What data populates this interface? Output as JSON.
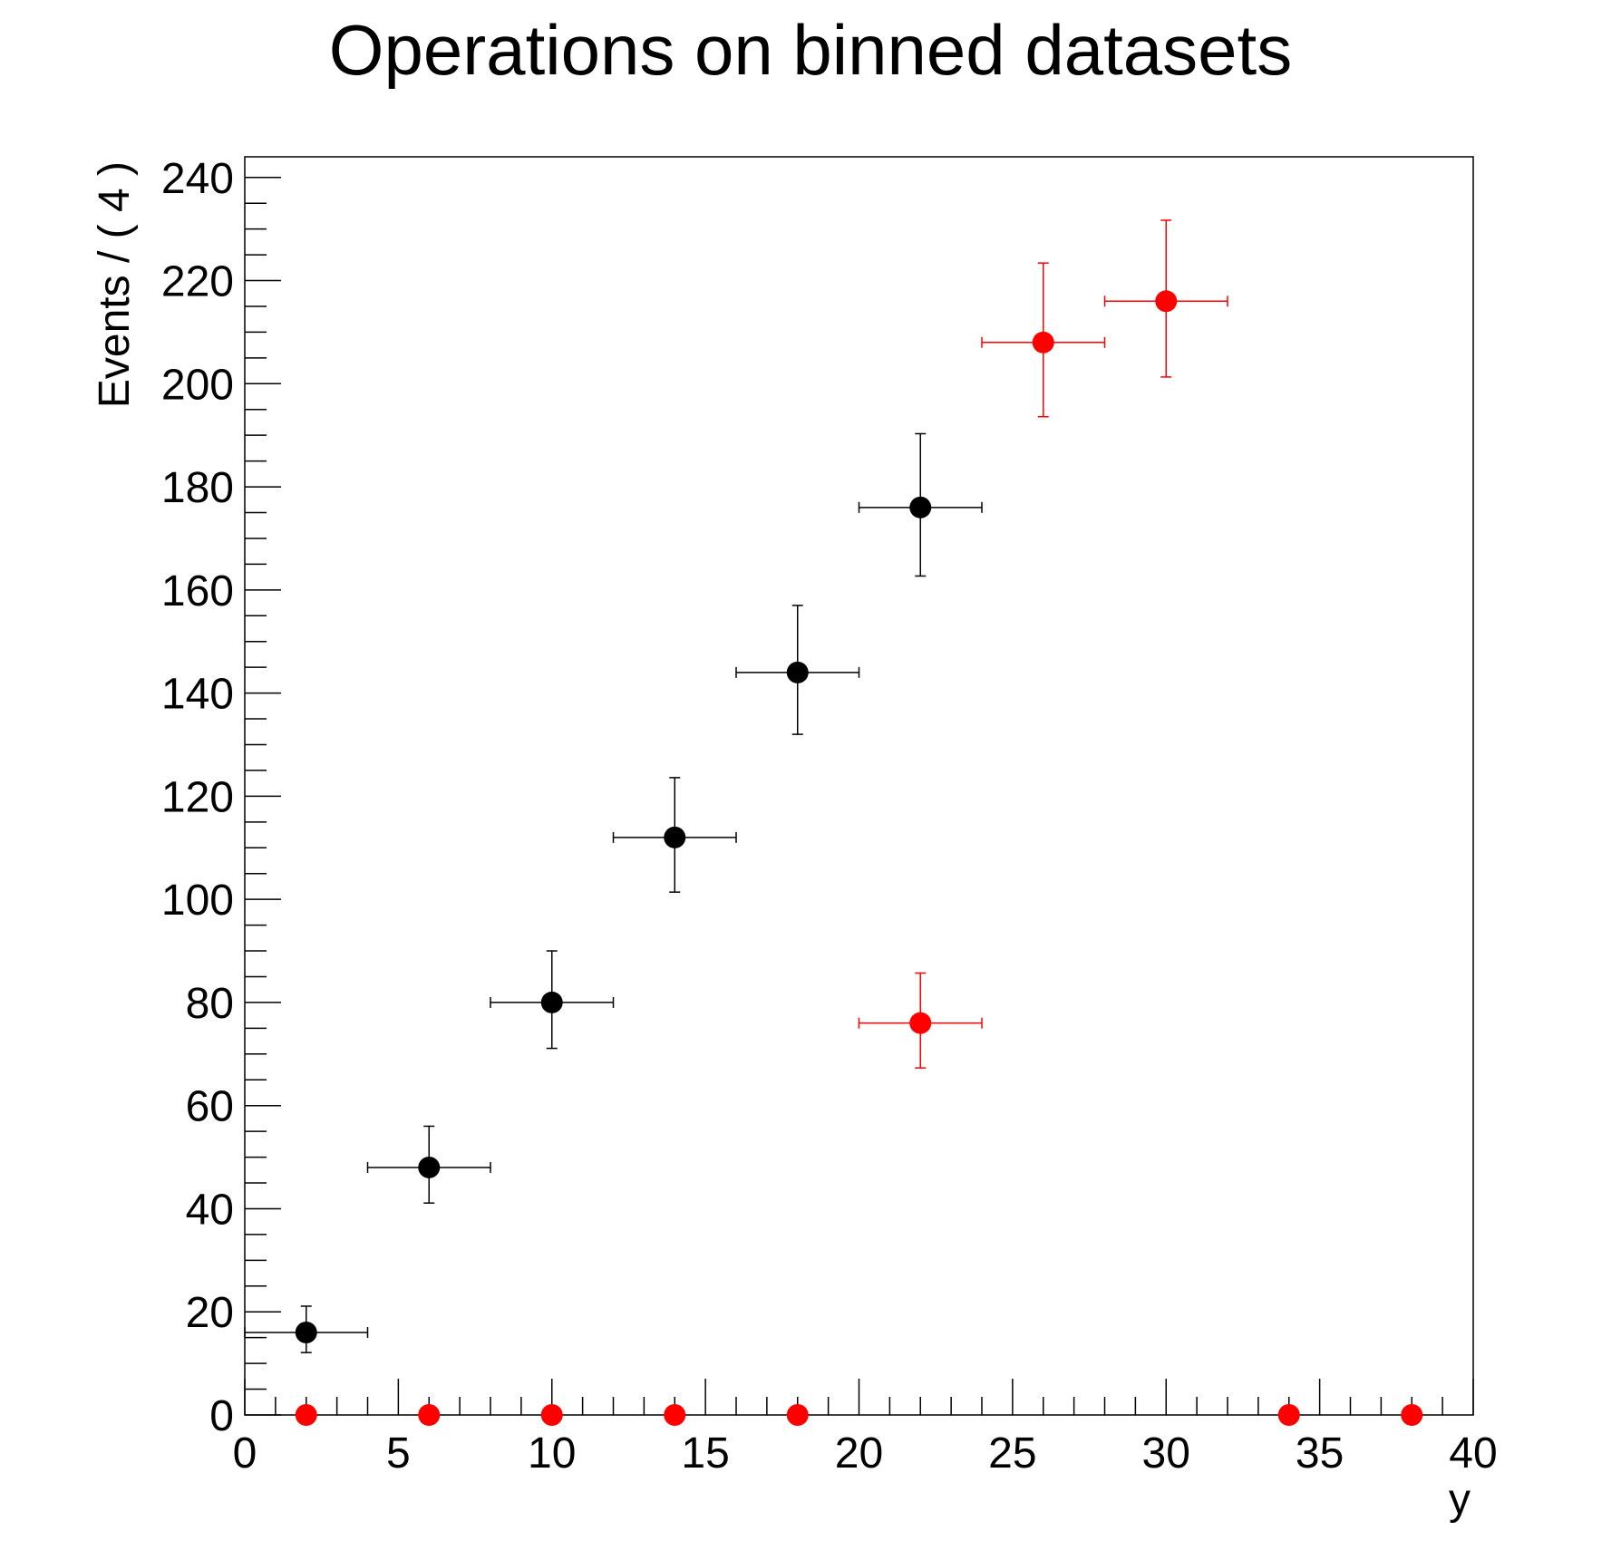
{
  "chart_data": {
    "type": "scatter",
    "title": "Operations on binned datasets",
    "xlabel": "y",
    "ylabel": "Events / ( 4 )",
    "xlim": [
      0,
      40
    ],
    "ylim": [
      0,
      244
    ],
    "x_ticks": [
      "0",
      "5",
      "10",
      "15",
      "20",
      "25",
      "30",
      "35",
      "40"
    ],
    "y_ticks": [
      "0",
      "20",
      "40",
      "60",
      "80",
      "100",
      "120",
      "140",
      "160",
      "180",
      "200",
      "220",
      "240"
    ],
    "grid": false,
    "legend": "none",
    "bin_width": 4,
    "series": [
      {
        "color": "#000000",
        "points": [
          {
            "x": 2,
            "y": 16,
            "err_low": 3.9,
            "err_high": 5.1
          },
          {
            "x": 6,
            "y": 48,
            "err_low": 6.9,
            "err_high": 8.0
          },
          {
            "x": 10,
            "y": 80,
            "err_low": 8.9,
            "err_high": 10.0
          },
          {
            "x": 14,
            "y": 112,
            "err_low": 10.6,
            "err_high": 11.6
          },
          {
            "x": 18,
            "y": 144,
            "err_low": 12.0,
            "err_high": 13.0
          },
          {
            "x": 22,
            "y": 176,
            "err_low": 13.3,
            "err_high": 14.3
          }
        ]
      },
      {
        "color": "#ff0000",
        "points": [
          {
            "x": 2,
            "y": 0
          },
          {
            "x": 6,
            "y": 0
          },
          {
            "x": 10,
            "y": 0
          },
          {
            "x": 14,
            "y": 0
          },
          {
            "x": 18,
            "y": 0
          },
          {
            "x": 22,
            "y": 76,
            "err_low": 8.7,
            "err_high": 9.7
          },
          {
            "x": 26,
            "y": 208,
            "err_low": 14.4,
            "err_high": 15.4
          },
          {
            "x": 30,
            "y": 216,
            "err_low": 14.7,
            "err_high": 15.7
          },
          {
            "x": 34,
            "y": 0
          },
          {
            "x": 38,
            "y": 0
          }
        ]
      }
    ]
  }
}
